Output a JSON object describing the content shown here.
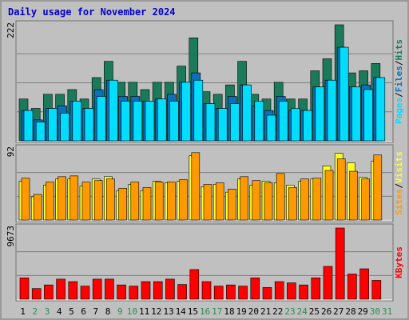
{
  "title": "Daily usage for November 2024",
  "colors": {
    "hits": "#1a7a5a",
    "files": "#0d6fb8",
    "pages": "#00ddff",
    "visits": "#ffff22",
    "sites": "#ff9900",
    "kbytes": "#ff0000",
    "weekend_day": "#2e8b57",
    "weekday": "#000000",
    "title": "#0000cc"
  },
  "chart_data": [
    {
      "type": "bar",
      "panel": "hits-files-pages",
      "categories": [
        "1",
        "2",
        "3",
        "4",
        "5",
        "6",
        "7",
        "8",
        "9",
        "10",
        "11",
        "12",
        "13",
        "14",
        "15",
        "16",
        "17",
        "18",
        "19",
        "20",
        "21",
        "22",
        "23",
        "24",
        "25",
        "26",
        "27",
        "28",
        "29",
        "30",
        "31"
      ],
      "weekend_days": [
        "2",
        "3",
        "9",
        "10",
        "16",
        "17",
        "23",
        "24",
        "30",
        "31"
      ],
      "y_max_label": "222",
      "ylim": [
        0,
        222
      ],
      "series": [
        {
          "name": "Hits",
          "values": [
            80,
            62,
            89,
            89,
            98,
            80,
            121,
            152,
            112,
            112,
            98,
            112,
            112,
            143,
            197,
            94,
            89,
            107,
            152,
            89,
            80,
            112,
            80,
            80,
            134,
            157,
            222,
            130,
            134,
            148,
            0
          ]
        },
        {
          "name": "Files",
          "values": [
            58,
            40,
            62,
            67,
            76,
            62,
            98,
            116,
            85,
            85,
            76,
            80,
            89,
            112,
            130,
            71,
            62,
            85,
            107,
            67,
            58,
            85,
            58,
            58,
            103,
            116,
            179,
            103,
            107,
            121,
            0
          ]
        },
        {
          "name": "Pages",
          "values": [
            58,
            36,
            62,
            53,
            76,
            62,
            85,
            116,
            76,
            76,
            76,
            80,
            76,
            112,
            116,
            71,
            62,
            71,
            107,
            76,
            49,
            76,
            62,
            58,
            103,
            116,
            179,
            103,
            98,
            121,
            0
          ]
        }
      ]
    },
    {
      "type": "bar",
      "panel": "visits-sites",
      "categories": [
        "1",
        "2",
        "3",
        "4",
        "5",
        "6",
        "7",
        "8",
        "9",
        "10",
        "11",
        "12",
        "13",
        "14",
        "15",
        "16",
        "17",
        "18",
        "19",
        "20",
        "21",
        "22",
        "23",
        "24",
        "25",
        "26",
        "27",
        "28",
        "29",
        "30",
        "31"
      ],
      "y_max_label": "92",
      "ylim": [
        0,
        92
      ],
      "series": [
        {
          "name": "Visits",
          "values": [
            50,
            30,
            45,
            53,
            53,
            44,
            53,
            56,
            38,
            46,
            38,
            50,
            48,
            50,
            83,
            43,
            46,
            36,
            53,
            45,
            50,
            48,
            45,
            50,
            53,
            70,
            86,
            74,
            55,
            76,
            0
          ]
        },
        {
          "name": "Sites",
          "values": [
            54,
            33,
            49,
            56,
            57,
            49,
            51,
            53,
            41,
            49,
            42,
            49,
            49,
            52,
            87,
            46,
            48,
            40,
            56,
            51,
            48,
            60,
            42,
            53,
            54,
            64,
            79,
            63,
            53,
            84,
            0
          ]
        }
      ]
    },
    {
      "type": "bar",
      "panel": "kbytes",
      "categories": [
        "1",
        "2",
        "3",
        "4",
        "5",
        "6",
        "7",
        "8",
        "9",
        "10",
        "11",
        "12",
        "13",
        "14",
        "15",
        "16",
        "17",
        "18",
        "19",
        "20",
        "21",
        "22",
        "23",
        "24",
        "25",
        "26",
        "27",
        "28",
        "29",
        "30",
        "31"
      ],
      "y_max_label": "9673",
      "ylim": [
        0,
        9673
      ],
      "series": [
        {
          "name": "KBytes",
          "values": [
            2900,
            1450,
            1940,
            2730,
            2390,
            1780,
            2730,
            2730,
            1940,
            1780,
            2390,
            2390,
            2730,
            2000,
            4030,
            2390,
            1780,
            1940,
            1780,
            2900,
            1600,
            2390,
            2220,
            1940,
            2900,
            4460,
            9673,
            3420,
            4130,
            2560,
            0
          ]
        }
      ]
    }
  ],
  "side_labels": {
    "panel1": [
      {
        "text": "Pages",
        "color_key": "pages"
      },
      {
        "text": "/",
        "color_key": "weekday"
      },
      {
        "text": "Files",
        "color_key": "files"
      },
      {
        "text": "/",
        "color_key": "weekday"
      },
      {
        "text": "Hits",
        "color_key": "hits"
      }
    ],
    "panel2": [
      {
        "text": "Sites",
        "color_key": "sites"
      },
      {
        "text": "/",
        "color_key": "weekday"
      },
      {
        "text": "Visits",
        "color_key": "visits"
      }
    ],
    "panel3": [
      {
        "text": "KBytes",
        "color_key": "kbytes"
      }
    ]
  }
}
